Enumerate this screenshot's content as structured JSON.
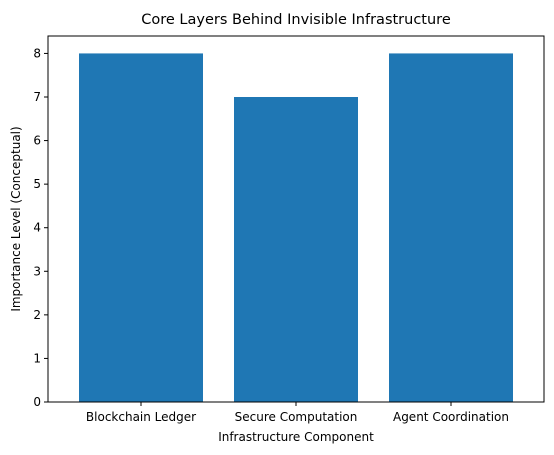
{
  "chart_data": {
    "type": "bar",
    "title": "Core Layers Behind Invisible Infrastructure",
    "xlabel": "Infrastructure Component",
    "ylabel": "Importance Level (Conceptual)",
    "categories": [
      "Blockchain Ledger",
      "Secure Computation",
      "Agent Coordination"
    ],
    "values": [
      8,
      7,
      8
    ],
    "ylim": [
      0,
      8.4
    ],
    "yticks": [
      0,
      1,
      2,
      3,
      4,
      5,
      6,
      7,
      8
    ],
    "grid": false,
    "legend": "none",
    "bar_color": "#1f77b4"
  }
}
